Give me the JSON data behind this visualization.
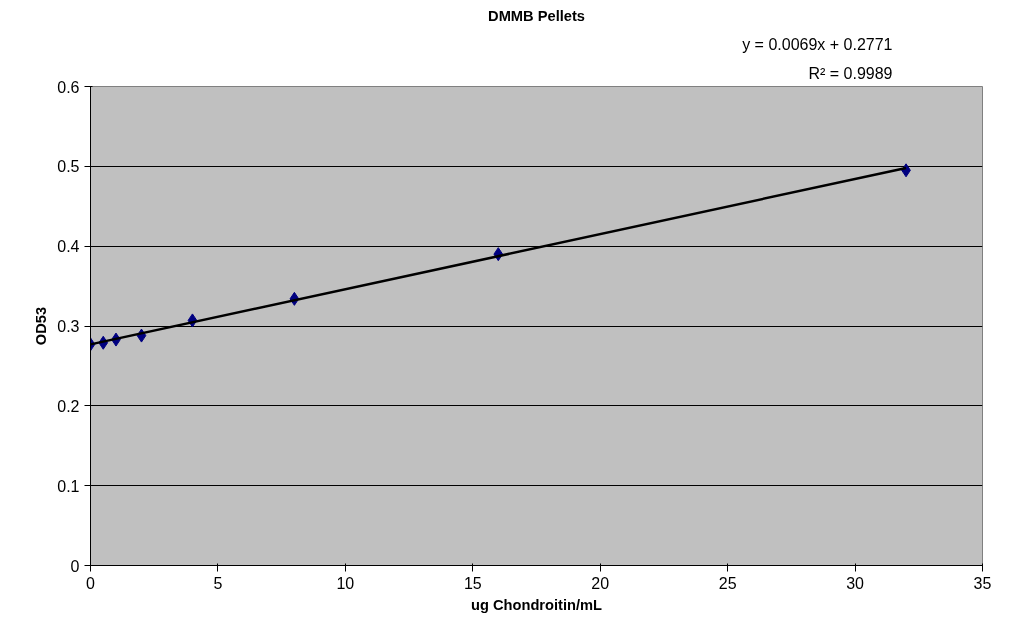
{
  "chart_data": {
    "type": "scatter",
    "title": "DMMB Pellets",
    "xlabel": "ug Chondroitin/mL",
    "ylabel": "OD53",
    "xlim": [
      0,
      35
    ],
    "xticks": [
      0,
      5,
      10,
      15,
      20,
      25,
      30,
      35
    ],
    "ylim": [
      0,
      0.6
    ],
    "yticks": [
      0,
      0.1,
      0.2,
      0.3,
      0.4,
      0.5,
      0.6
    ],
    "grid": "y",
    "series": [
      {
        "color": "#000080",
        "marker": "diamond",
        "x": [
          0,
          0.5,
          1,
          2,
          4,
          8,
          16,
          32
        ],
        "values": [
          0.277,
          0.279,
          0.283,
          0.288,
          0.307,
          0.334,
          0.39,
          0.495
        ]
      },
      {
        "type": "line",
        "color": "#000000",
        "x": [
          0,
          32
        ],
        "values": [
          0.277,
          0.498
        ]
      }
    ],
    "annotations": [
      "y = 0.0069x + 0.2771",
      "R² = 0.9989"
    ]
  }
}
